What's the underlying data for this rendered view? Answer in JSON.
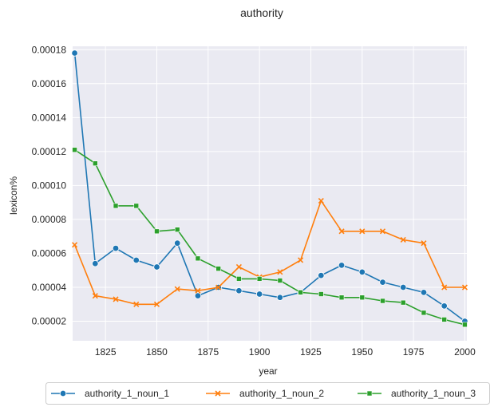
{
  "chart_data": {
    "type": "line",
    "title": "authority",
    "xlabel": "year",
    "ylabel": "lexicon%",
    "xlim": [
      1809,
      2001
    ],
    "ylim": [
      8.5e-06,
      0.000182
    ],
    "x_ticks": [
      1825,
      1850,
      1875,
      1900,
      1925,
      1950,
      1975,
      2000
    ],
    "y_ticks": [
      2e-05,
      4e-05,
      6e-05,
      8e-05,
      0.0001,
      0.00012,
      0.00014,
      0.00016,
      0.00018
    ],
    "y_tick_labels": [
      "0.00002",
      "0.00004",
      "0.00006",
      "0.00008",
      "0.00010",
      "0.00012",
      "0.00014",
      "0.00016",
      "0.00018"
    ],
    "grid": true,
    "legend_position": "bottom-center",
    "x": [
      1810,
      1820,
      1830,
      1840,
      1850,
      1860,
      1870,
      1880,
      1890,
      1900,
      1910,
      1920,
      1930,
      1940,
      1950,
      1960,
      1970,
      1980,
      1990,
      2000
    ],
    "series": [
      {
        "name": "authority_1_noun_1",
        "color": "#1f77b4",
        "marker": "circle",
        "values": [
          0.000178,
          5.4e-05,
          6.3e-05,
          5.6e-05,
          5.2e-05,
          6.6e-05,
          3.5e-05,
          4e-05,
          3.8e-05,
          3.6e-05,
          3.4e-05,
          3.7e-05,
          4.7e-05,
          5.3e-05,
          4.9e-05,
          4.3e-05,
          4e-05,
          3.7e-05,
          2.9e-05,
          2e-05
        ]
      },
      {
        "name": "authority_1_noun_2",
        "color": "#ff7f0e",
        "marker": "x",
        "values": [
          6.5e-05,
          3.5e-05,
          3.3e-05,
          3e-05,
          3e-05,
          3.9e-05,
          3.8e-05,
          4e-05,
          5.2e-05,
          4.6e-05,
          4.9e-05,
          5.6e-05,
          9.1e-05,
          7.3e-05,
          7.3e-05,
          7.3e-05,
          6.8e-05,
          6.6e-05,
          4e-05,
          4e-05
        ]
      },
      {
        "name": "authority_1_noun_3",
        "color": "#2ca02c",
        "marker": "square",
        "values": [
          0.000121,
          0.000113,
          8.8e-05,
          8.8e-05,
          7.3e-05,
          7.4e-05,
          5.7e-05,
          5.1e-05,
          4.5e-05,
          4.5e-05,
          4.4e-05,
          3.7e-05,
          3.6e-05,
          3.4e-05,
          3.4e-05,
          3.2e-05,
          3.1e-05,
          2.5e-05,
          2.1e-05,
          1.8e-05
        ]
      }
    ]
  },
  "page_style": {
    "plot_background": "#eaeaf2",
    "grid_color": "#ffffff"
  }
}
